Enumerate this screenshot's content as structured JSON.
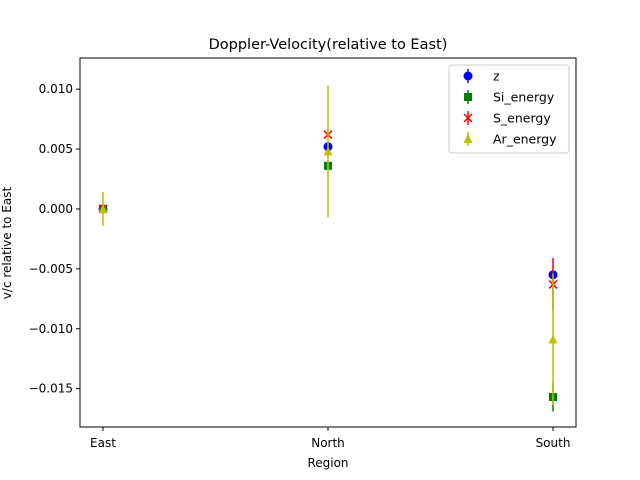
{
  "chart_data": {
    "type": "scatter",
    "title": "Doppler-Velocity(relative to East)",
    "xlabel": "Region",
    "ylabel": "v/c relative to East",
    "categories": [
      "East",
      "North",
      "South"
    ],
    "ylim": [
      -0.0182,
      0.0126
    ],
    "yticks": [
      0.01,
      0.005,
      0.0,
      -0.005,
      -0.01,
      -0.015
    ],
    "ytick_labels": [
      "0.010",
      "0.005",
      "0.000",
      "−0.005",
      "−0.010",
      "−0.015"
    ],
    "grid": false,
    "legend_position": "top-right",
    "series": [
      {
        "name": "z",
        "color": "#0000ff",
        "marker": "circle",
        "values": [
          0.0,
          0.0052,
          -0.0055
        ],
        "errors": [
          0.0,
          0.0,
          0.0
        ]
      },
      {
        "name": "Si_energy",
        "color": "#008000",
        "marker": "square",
        "values": [
          0.0,
          0.0036,
          -0.0157
        ],
        "errors": [
          0.0,
          0.0,
          0.0012
        ]
      },
      {
        "name": "S_energy",
        "color": "#ff0000",
        "marker": "x",
        "values": [
          0.0,
          0.0062,
          -0.0063
        ],
        "errors": [
          0.0,
          0.0,
          0.0022
        ]
      },
      {
        "name": "Ar_energy",
        "color": "#bfbf00",
        "marker": "triangle",
        "values": [
          0.0,
          0.0048,
          -0.0109
        ],
        "errors": [
          0.0014,
          0.0055,
          0.0055
        ]
      }
    ]
  }
}
